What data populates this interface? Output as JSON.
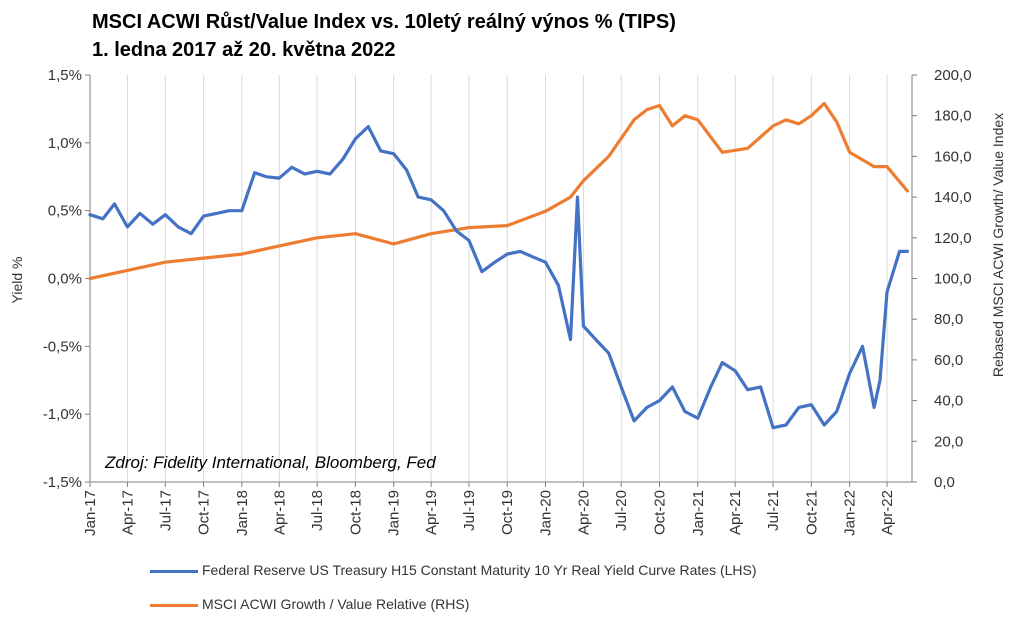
{
  "title_line1": "MSCI ACWI Růst/Value Index vs. 10letý reálný výnos % (TIPS)",
  "title_line2": "1. ledna 2017 až 20. května 2022",
  "source": "Zdroj: Fidelity International, Bloomberg, Fed",
  "chart_data": {
    "type": "line",
    "title": "MSCI ACWI Růst/Value Index vs. 10letý reálný výnos % (TIPS)",
    "subtitle": "1. ledna 2017 až 20. května 2022",
    "ylabel": "Yield %",
    "y2label": "Rebased MSCI ACWI Growth/ Value Index",
    "ylim": [
      -1.5,
      1.5
    ],
    "y2lim": [
      0,
      200
    ],
    "yticks": [
      "1,5%",
      "1,0%",
      "0,5%",
      "0,0%",
      "-0,5%",
      "-1,0%",
      "-1,5%"
    ],
    "y2ticks": [
      "200,0",
      "180,0",
      "160,0",
      "140,0",
      "120,0",
      "100,0",
      "80,0",
      "60,0",
      "40,0",
      "20,0",
      "0,0"
    ],
    "xticks": [
      "Jan-17",
      "Apr-17",
      "Jul-17",
      "Oct-17",
      "Jan-18",
      "Apr-18",
      "Jul-18",
      "Oct-18",
      "Jan-19",
      "Apr-19",
      "Jul-19",
      "Oct-19",
      "Jan-20",
      "Apr-20",
      "Jul-20",
      "Oct-20",
      "Jan-21",
      "Apr-21",
      "Jul-21",
      "Oct-21",
      "Jan-22",
      "Apr-22"
    ],
    "grid": "vertical",
    "legend_position": "bottom",
    "series": [
      {
        "name": "Federal Reserve US Treasury H15 Constant Maturity 10 Yr Real Yield Curve Rates (LHS)",
        "axis": "left",
        "color": "#4472C4",
        "points": [
          [
            "2017-01-01",
            0.47
          ],
          [
            "2017-02-01",
            0.44
          ],
          [
            "2017-03-01",
            0.55
          ],
          [
            "2017-04-01",
            0.38
          ],
          [
            "2017-05-01",
            0.48
          ],
          [
            "2017-06-01",
            0.4
          ],
          [
            "2017-07-01",
            0.47
          ],
          [
            "2017-08-01",
            0.38
          ],
          [
            "2017-09-01",
            0.33
          ],
          [
            "2017-10-01",
            0.46
          ],
          [
            "2017-11-01",
            0.48
          ],
          [
            "2017-12-01",
            0.5
          ],
          [
            "2018-01-01",
            0.5
          ],
          [
            "2018-02-01",
            0.78
          ],
          [
            "2018-03-01",
            0.75
          ],
          [
            "2018-04-01",
            0.74
          ],
          [
            "2018-05-01",
            0.82
          ],
          [
            "2018-06-01",
            0.77
          ],
          [
            "2018-07-01",
            0.79
          ],
          [
            "2018-08-01",
            0.77
          ],
          [
            "2018-09-01",
            0.88
          ],
          [
            "2018-10-01",
            1.03
          ],
          [
            "2018-11-01",
            1.12
          ],
          [
            "2018-12-01",
            0.94
          ],
          [
            "2019-01-01",
            0.92
          ],
          [
            "2019-02-01",
            0.8
          ],
          [
            "2019-03-01",
            0.6
          ],
          [
            "2019-04-01",
            0.58
          ],
          [
            "2019-05-01",
            0.5
          ],
          [
            "2019-06-01",
            0.35
          ],
          [
            "2019-07-01",
            0.28
          ],
          [
            "2019-08-01",
            0.05
          ],
          [
            "2019-09-01",
            0.12
          ],
          [
            "2019-10-01",
            0.18
          ],
          [
            "2019-11-01",
            0.2
          ],
          [
            "2019-12-01",
            0.16
          ],
          [
            "2020-01-01",
            0.12
          ],
          [
            "2020-02-01",
            -0.05
          ],
          [
            "2020-03-01",
            -0.45
          ],
          [
            "2020-03-18",
            0.6
          ],
          [
            "2020-04-01",
            -0.35
          ],
          [
            "2020-05-01",
            -0.45
          ],
          [
            "2020-06-01",
            -0.55
          ],
          [
            "2020-07-01",
            -0.8
          ],
          [
            "2020-08-01",
            -1.05
          ],
          [
            "2020-09-01",
            -0.95
          ],
          [
            "2020-10-01",
            -0.9
          ],
          [
            "2020-11-01",
            -0.8
          ],
          [
            "2020-12-01",
            -0.98
          ],
          [
            "2021-01-01",
            -1.03
          ],
          [
            "2021-02-01",
            -0.8
          ],
          [
            "2021-03-01",
            -0.62
          ],
          [
            "2021-04-01",
            -0.68
          ],
          [
            "2021-05-01",
            -0.82
          ],
          [
            "2021-06-01",
            -0.8
          ],
          [
            "2021-07-01",
            -1.1
          ],
          [
            "2021-08-01",
            -1.08
          ],
          [
            "2021-09-01",
            -0.95
          ],
          [
            "2021-10-01",
            -0.93
          ],
          [
            "2021-11-01",
            -1.08
          ],
          [
            "2021-12-01",
            -0.98
          ],
          [
            "2022-01-01",
            -0.7
          ],
          [
            "2022-02-01",
            -0.5
          ],
          [
            "2022-03-01",
            -0.95
          ],
          [
            "2022-03-15",
            -0.75
          ],
          [
            "2022-04-01",
            -0.1
          ],
          [
            "2022-05-01",
            0.2
          ],
          [
            "2022-05-20",
            0.2
          ]
        ]
      },
      {
        "name": "MSCI ACWI Growth / Value Relative (RHS)",
        "axis": "right",
        "color": "#ED7D31",
        "points": [
          [
            "2017-01-01",
            100
          ],
          [
            "2017-04-01",
            104
          ],
          [
            "2017-07-01",
            108
          ],
          [
            "2017-10-01",
            110
          ],
          [
            "2018-01-01",
            112
          ],
          [
            "2018-04-01",
            116
          ],
          [
            "2018-07-01",
            120
          ],
          [
            "2018-10-01",
            122
          ],
          [
            "2019-01-01",
            117
          ],
          [
            "2019-04-01",
            122
          ],
          [
            "2019-07-01",
            125
          ],
          [
            "2019-10-01",
            126
          ],
          [
            "2020-01-01",
            133
          ],
          [
            "2020-03-01",
            140
          ],
          [
            "2020-04-01",
            148
          ],
          [
            "2020-06-01",
            160
          ],
          [
            "2020-08-01",
            178
          ],
          [
            "2020-09-01",
            183
          ],
          [
            "2020-10-01",
            185
          ],
          [
            "2020-11-01",
            175
          ],
          [
            "2020-12-01",
            180
          ],
          [
            "2021-01-01",
            178
          ],
          [
            "2021-03-01",
            162
          ],
          [
            "2021-05-01",
            164
          ],
          [
            "2021-07-01",
            175
          ],
          [
            "2021-08-01",
            178
          ],
          [
            "2021-09-01",
            176
          ],
          [
            "2021-10-01",
            180
          ],
          [
            "2021-11-01",
            186
          ],
          [
            "2021-12-01",
            177
          ],
          [
            "2022-01-01",
            162
          ],
          [
            "2022-03-01",
            155
          ],
          [
            "2022-04-01",
            155
          ],
          [
            "2022-05-20",
            143
          ]
        ]
      }
    ]
  }
}
